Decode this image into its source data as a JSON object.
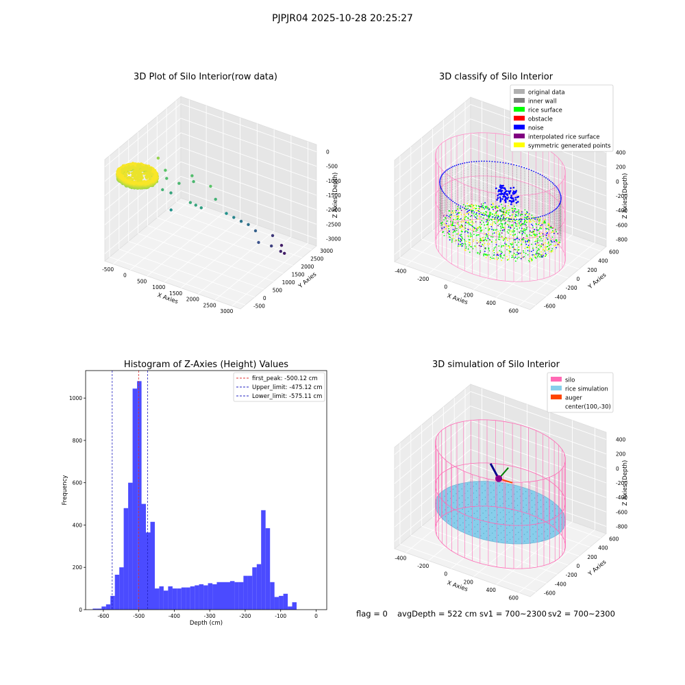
{
  "figure": {
    "suptitle": "PJPJR04 2025-10-28 20:25:27",
    "footer": {
      "flag": "flag = 0",
      "avg_depth": "avgDepth = 522 cm",
      "sv1": "sv1 = 700~2300",
      "sv2": "sv2 = 700~2300"
    }
  },
  "colors": {
    "hist_bar": "#4b4bff",
    "first_peak_line": "#e03030",
    "limit_lines": "#2020c0",
    "original_data": "#b0b0b0",
    "inner_wall": "#808080",
    "rice_surface": "#00ff00",
    "obstacle": "#ff0000",
    "noise": "#0000ff",
    "interpolated_rice_surface": "#800080",
    "symmetric_generated_points": "#ffff00",
    "silo": "#ff69b4",
    "rice_simulation": "#87ceeb",
    "auger": "#ff4500"
  },
  "chart_data": [
    {
      "type": "scatter",
      "title": "3D Plot of Silo Interior(row data)",
      "xlabel": "X Axies",
      "ylabel": "Y Axies",
      "zlabel": "Z Axies (Depth)",
      "x_ticks": [
        "-500",
        "0",
        "500",
        "1000",
        "1500",
        "2000",
        "2500",
        "3000"
      ],
      "y_ticks": [
        "-500",
        "0",
        "500",
        "1000",
        "1500",
        "2000",
        "2500",
        "3000"
      ],
      "z_ticks": [
        "0",
        "-500",
        "-1000",
        "-1500",
        "-2000",
        "-2500",
        "-3000"
      ],
      "xlim": [
        -600,
        3300
      ],
      "ylim": [
        -600,
        3300
      ],
      "zlim": [
        -3300,
        100
      ],
      "cluster": {
        "x_range": [
          -500,
          500
        ],
        "y_range": [
          -500,
          500
        ],
        "z_range": [
          -600,
          -450
        ]
      },
      "points": [
        {
          "x": 150,
          "y": 800,
          "z": -300
        },
        {
          "x": 300,
          "y": 900,
          "z": -700
        },
        {
          "x": 450,
          "y": 700,
          "z": -800
        },
        {
          "x": 600,
          "y": 650,
          "z": -1200
        },
        {
          "x": 500,
          "y": 400,
          "z": -1000
        },
        {
          "x": 750,
          "y": 800,
          "z": -900
        },
        {
          "x": 900,
          "y": 1200,
          "z": -800
        },
        {
          "x": 1000,
          "y": 1100,
          "z": -900
        },
        {
          "x": 800,
          "y": 300,
          "z": -1500
        },
        {
          "x": 1300,
          "y": 400,
          "z": -1100
        },
        {
          "x": 1400,
          "y": 500,
          "z": -1200
        },
        {
          "x": 1500,
          "y": 600,
          "z": -1300
        },
        {
          "x": 1600,
          "y": 900,
          "z": -700
        },
        {
          "x": 1800,
          "y": 800,
          "z": -1000
        },
        {
          "x": 2000,
          "y": 1000,
          "z": -1500
        },
        {
          "x": 2100,
          "y": 1200,
          "z": -1700
        },
        {
          "x": 2200,
          "y": 1400,
          "z": -1900
        },
        {
          "x": 2350,
          "y": 1500,
          "z": -2000
        },
        {
          "x": 2500,
          "y": 1600,
          "z": -2200
        },
        {
          "x": 2700,
          "y": 1400,
          "z": -2400
        },
        {
          "x": 2900,
          "y": 1700,
          "z": -2600
        },
        {
          "x": 3000,
          "y": 2000,
          "z": -2900
        },
        {
          "x": 3050,
          "y": 2100,
          "z": -3000
        },
        {
          "x": 2800,
          "y": 2400,
          "z": -3000
        },
        {
          "x": 2600,
          "y": 2300,
          "z": -2700
        }
      ]
    },
    {
      "type": "scatter",
      "title": "3D classify of Silo Interior",
      "xlabel": "X Axies",
      "ylabel": "Y Axies",
      "zlabel": "Z Axies (Depth)",
      "x_ticks": [
        "-400",
        "-200",
        "0",
        "200",
        "400",
        "600"
      ],
      "y_ticks": [
        "-600",
        "-400",
        "-200",
        "0",
        "200",
        "400",
        "600"
      ],
      "z_ticks": [
        "400",
        "200",
        "0",
        "-200",
        "-400",
        "-600",
        "-800"
      ],
      "xlim": [
        -500,
        700
      ],
      "ylim": [
        -700,
        700
      ],
      "zlim": [
        -900,
        450
      ],
      "legend_position": "top-right",
      "legend": [
        {
          "label": "original data",
          "color": "#b0b0b0"
        },
        {
          "label": "inner wall",
          "color": "#808080"
        },
        {
          "label": "rice surface",
          "color": "#00ff00"
        },
        {
          "label": "obstacle",
          "color": "#ff0000"
        },
        {
          "label": "noise",
          "color": "#0000ff"
        },
        {
          "label": "interpolated rice surface",
          "color": "#800080"
        },
        {
          "label": "symmetric generated points",
          "color": "#ffff00"
        }
      ],
      "silo": {
        "center": [
          100,
          0
        ],
        "radius": 520,
        "z_top": 300,
        "z_bottom": -850
      },
      "wall": {
        "z_top": -50,
        "z_bottom": -600
      },
      "surface": {
        "z_min": -700,
        "z_max": -450
      }
    },
    {
      "type": "bar",
      "title": "Histogram of Z-Axies (Height) Values",
      "xlabel": "Depth (cm)",
      "ylabel": "Frequency",
      "xlim": [
        -650,
        30
      ],
      "ylim": [
        0,
        1130
      ],
      "x_ticks": [
        "-600",
        "-500",
        "-400",
        "-300",
        "-200",
        "-100",
        "0"
      ],
      "y_ticks": [
        "0",
        "200",
        "400",
        "600",
        "800",
        "1000"
      ],
      "bin_start": -630,
      "bin_width": 12.5,
      "values": [
        5,
        5,
        15,
        25,
        65,
        165,
        200,
        480,
        600,
        1045,
        1080,
        500,
        365,
        415,
        100,
        110,
        90,
        110,
        100,
        100,
        105,
        105,
        110,
        115,
        120,
        115,
        125,
        120,
        130,
        130,
        130,
        135,
        130,
        130,
        160,
        160,
        200,
        215,
        470,
        385,
        130,
        60,
        65,
        75,
        15,
        35
      ],
      "vlines": [
        {
          "x": -500.12,
          "label": "first_peak: -500.12 cm",
          "style": "peak"
        },
        {
          "x": -475.12,
          "label": "Upper_limit: -475.12 cm",
          "style": "limit"
        },
        {
          "x": -575.11,
          "label": "Lower_limit: -575.11 cm",
          "style": "limit"
        }
      ],
      "legend_position": "top-right"
    },
    {
      "type": "scatter",
      "title": "3D simulation of Silo Interior",
      "xlabel": "X Axies",
      "ylabel": "Y Axies",
      "zlabel": "Z Axies (Depth)",
      "x_ticks": [
        "-400",
        "-200",
        "0",
        "200",
        "400",
        "600"
      ],
      "y_ticks": [
        "-600",
        "-400",
        "-200",
        "0",
        "200",
        "400",
        "600"
      ],
      "z_ticks": [
        "400",
        "200",
        "0",
        "-200",
        "-400",
        "-600",
        "-800"
      ],
      "xlim": [
        -500,
        700
      ],
      "ylim": [
        -700,
        700
      ],
      "zlim": [
        -900,
        450
      ],
      "legend_position": "top-right",
      "legend": [
        {
          "label": "silo",
          "color": "#ff69b4"
        },
        {
          "label": "rice simulation",
          "color": "#87ceeb"
        },
        {
          "label": "auger",
          "color": "#ff4500"
        },
        {
          "label": "center(100,-30)",
          "color": ""
        }
      ],
      "silo": {
        "center": [
          100,
          0
        ],
        "radius": 520,
        "z_top": 300,
        "z_bottom": -850
      },
      "rice_surface_z": -520,
      "center": [
        100,
        -30
      ]
    }
  ]
}
